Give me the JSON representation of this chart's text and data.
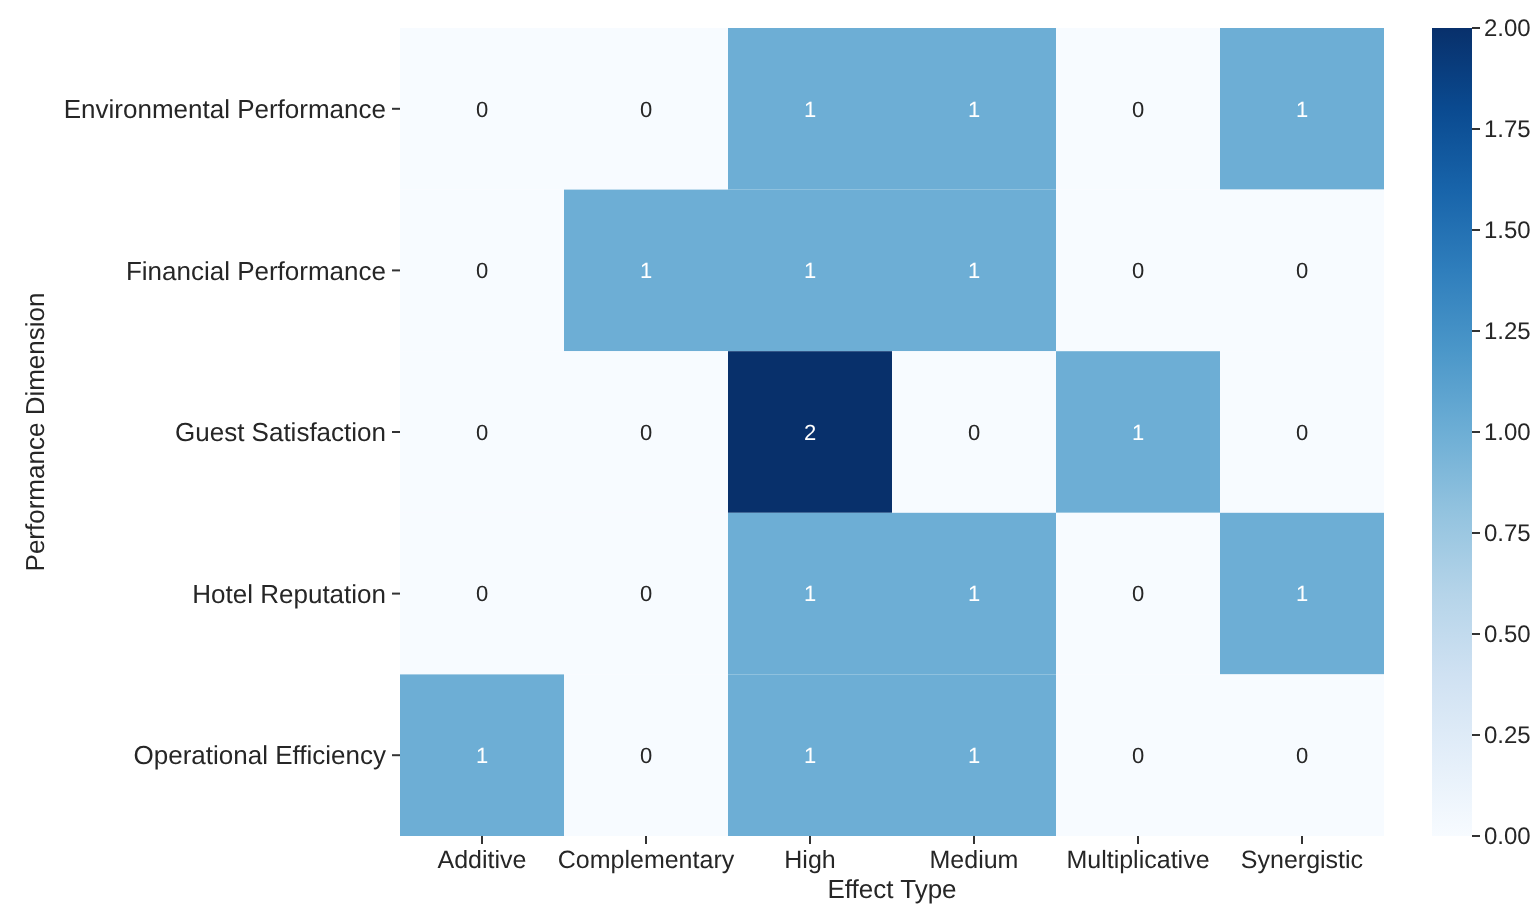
{
  "chart_data": {
    "type": "heatmap",
    "xlabel": "Effect Type",
    "ylabel": "Performance Dimension",
    "categories": [
      "Additive",
      "Complementary",
      "High",
      "Medium",
      "Multiplicative",
      "Synergistic"
    ],
    "y_categories": [
      "Environmental Performance",
      "Financial Performance",
      "Guest Satisfaction",
      "Hotel Reputation",
      "Operational Efficiency"
    ],
    "cells": [
      [
        0,
        0,
        1,
        1,
        0,
        1
      ],
      [
        0,
        1,
        1,
        1,
        0,
        0
      ],
      [
        0,
        0,
        2,
        0,
        1,
        0
      ],
      [
        0,
        0,
        1,
        1,
        0,
        1
      ],
      [
        1,
        0,
        1,
        1,
        0,
        0
      ]
    ],
    "data_labels": true,
    "clim": [
      0,
      2
    ],
    "cticks": [
      {
        "value": 0,
        "label": "0.00"
      },
      {
        "value": 0.25,
        "label": "0.25"
      },
      {
        "value": 0.5,
        "label": "0.50"
      },
      {
        "value": 0.75,
        "label": "0.75"
      },
      {
        "value": 1,
        "label": "1.00"
      },
      {
        "value": 1.25,
        "label": "1.25"
      },
      {
        "value": 1.5,
        "label": "1.50"
      },
      {
        "value": 1.75,
        "label": "1.75"
      },
      {
        "value": 2,
        "label": "2.00"
      }
    ]
  }
}
